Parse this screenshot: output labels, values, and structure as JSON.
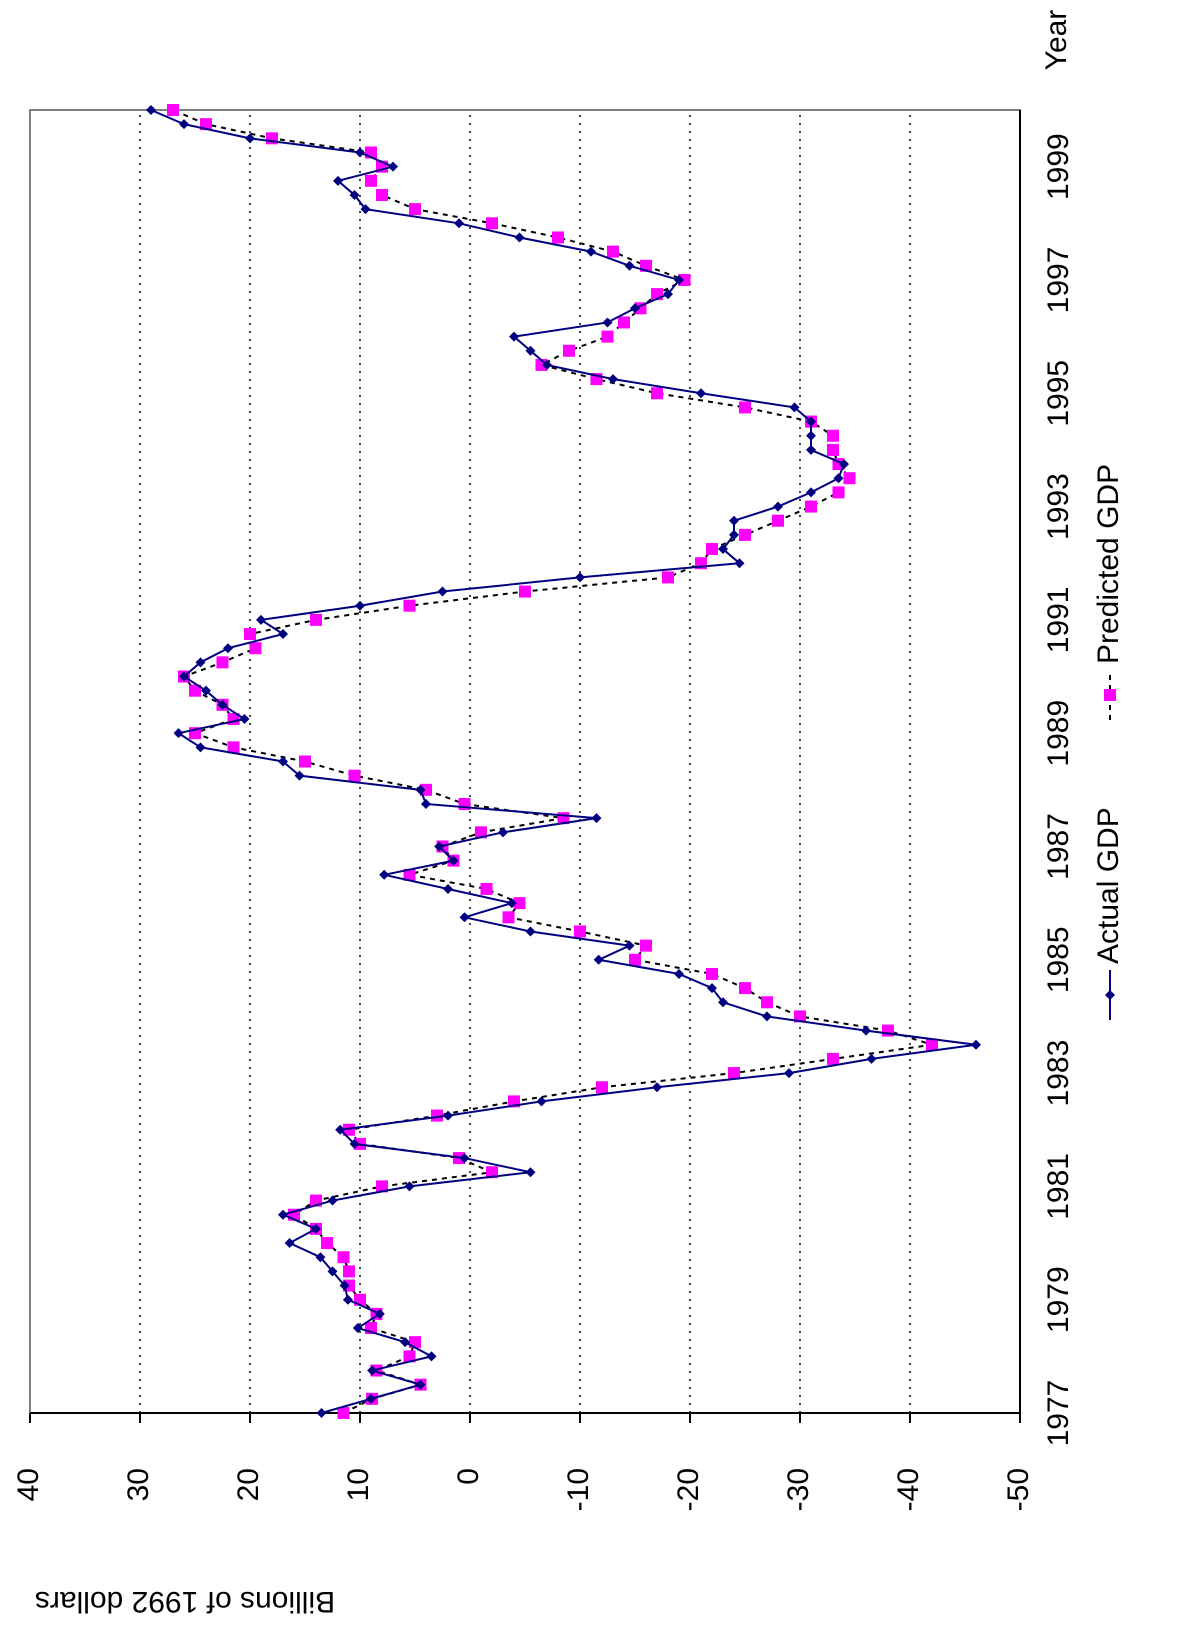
{
  "chart_data": {
    "type": "line",
    "y_label": "Billions of 1992 dollars",
    "x_label": "Year",
    "categories": [
      "1977",
      null,
      null,
      null,
      null,
      null,
      null,
      null,
      "1979",
      null,
      null,
      null,
      null,
      null,
      null,
      null,
      "1981",
      null,
      null,
      null,
      null,
      null,
      null,
      null,
      "1983",
      null,
      null,
      null,
      null,
      null,
      null,
      null,
      "1985",
      null,
      null,
      null,
      null,
      null,
      null,
      null,
      "1987",
      null,
      null,
      null,
      null,
      null,
      null,
      null,
      "1989",
      null,
      null,
      null,
      null,
      null,
      null,
      null,
      "1991",
      null,
      null,
      null,
      null,
      null,
      null,
      null,
      "1993",
      null,
      null,
      null,
      null,
      null,
      null,
      null,
      "1995",
      null,
      null,
      null,
      null,
      null,
      null,
      null,
      "1997",
      null,
      null,
      null,
      null,
      null,
      null,
      null,
      "1999",
      null,
      null,
      null,
      null
    ],
    "series": [
      {
        "name": "Actual GDP",
        "color": "#000080",
        "marker": "diamond",
        "dash": "solid",
        "values": [
          13.5,
          9,
          4.5,
          8.9,
          3.5,
          5.9,
          10.2,
          8.2,
          11.1,
          11.4,
          12.5,
          13.6,
          16.4,
          14,
          17,
          12.5,
          5.5,
          -5.5,
          0.5,
          10.5,
          11.8,
          2,
          -6.5,
          -17,
          -29,
          -36.5,
          -46,
          -36,
          -27,
          -23,
          -22,
          -19,
          -11.7,
          -14.5,
          -5.5,
          0.5,
          -3.8,
          2,
          7.8,
          1.5,
          2.8,
          -3,
          -11.5,
          4,
          4.5,
          15.5,
          17,
          24.5,
          26.5,
          20.5,
          22.5,
          24,
          26,
          24.5,
          22,
          17,
          19,
          10,
          2.5,
          -10,
          -24.5,
          -23,
          -24,
          -24,
          -28,
          -31,
          -33.5,
          -34,
          -31,
          -31,
          -31,
          -29.5,
          -21,
          -13,
          -7,
          -5.5,
          -4,
          -12.5,
          -15,
          -18,
          -19,
          -14.5,
          -11,
          -4.5,
          1,
          9.5,
          10.5,
          12,
          7,
          10,
          20,
          26,
          29
        ]
      },
      {
        "name": "Predicted GDP",
        "color": "#ff00ff",
        "marker": "square",
        "dash": "dotted",
        "values": [
          11.5,
          8.9,
          4.5,
          8.5,
          5.5,
          5,
          9,
          8.5,
          10,
          11,
          11,
          11.5,
          13,
          14,
          16,
          14,
          8,
          -2,
          1,
          10,
          11,
          3,
          -4,
          -12,
          -24,
          -33,
          -42,
          -38,
          -30,
          -27,
          -25,
          -22,
          -15,
          -16,
          -10,
          -3.5,
          -4.5,
          -1.5,
          5.5,
          1.5,
          2.5,
          -1,
          -8.5,
          0.5,
          4,
          10.5,
          15,
          21.5,
          25,
          21.5,
          22.5,
          25,
          26,
          22.5,
          19.5,
          20,
          14,
          5.5,
          -5,
          -18,
          -21,
          -22,
          -25,
          -28,
          -31,
          -33.5,
          -34.5,
          -33.5,
          -33,
          -33,
          -31,
          -25,
          -17,
          -11.5,
          -6.5,
          -9,
          -12.5,
          -14,
          -15.5,
          -17,
          -19.5,
          -16,
          -13,
          -8,
          -2,
          5,
          8,
          9,
          8,
          9,
          18,
          24,
          27
        ]
      }
    ],
    "ylim": [
      -50,
      40
    ],
    "yticks": [
      -50,
      -40,
      -30,
      -20,
      -10,
      0,
      10,
      20,
      30,
      40
    ],
    "grid": true
  }
}
